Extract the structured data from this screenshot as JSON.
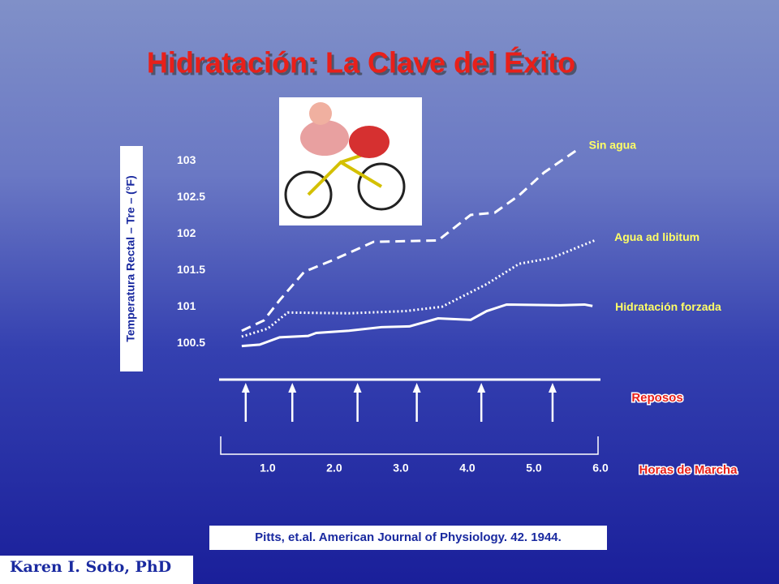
{
  "title": "Hidratación: La Clave del Éxito",
  "citation": "Pitts, et.al. American Journal of Physiology. 42. 1944.",
  "author": "Karen I. Soto, PhD",
  "chart_data": {
    "type": "line",
    "ylabel": "Temperatura Rectal – Tre – (°F)",
    "xlabel": "Horas de Marcha",
    "xlim": [
      0.27,
      6.0
    ],
    "ylim": [
      100,
      103.25
    ],
    "xticks": [
      {
        "value": 1,
        "label": "1.0"
      },
      {
        "value": 2,
        "label": "2.0"
      },
      {
        "value": 3,
        "label": "3.0"
      },
      {
        "value": 4,
        "label": "4.0"
      },
      {
        "value": 5,
        "label": "5.0"
      },
      {
        "value": 6,
        "label": "6.0"
      }
    ],
    "yticks": [
      100.5,
      101,
      101.5,
      102,
      102.5,
      103
    ],
    "rest_label": "Reposos",
    "rest_x": [
      0.67,
      1.37,
      2.35,
      3.24,
      4.21,
      5.28
    ],
    "series": [
      {
        "name": "Sin agua",
        "color": "#ffffff",
        "dash": "dashed",
        "x": [
          0.61,
          0.94,
          1.18,
          1.55,
          1.98,
          2.59,
          3.56,
          4.05,
          4.41,
          4.78,
          5.15,
          5.63
        ],
        "values": [
          100.67,
          100.81,
          101.09,
          101.48,
          101.64,
          101.89,
          101.91,
          102.26,
          102.29,
          102.53,
          102.84,
          103.14
        ]
      },
      {
        "name": "Agua ad libitum",
        "color": "#ffffff",
        "dash": "dotted",
        "x": [
          0.61,
          1.0,
          1.3,
          2.22,
          3.07,
          3.62,
          4.29,
          4.78,
          5.27,
          5.94
        ],
        "values": [
          100.59,
          100.7,
          100.92,
          100.91,
          100.94,
          101.0,
          101.31,
          101.59,
          101.67,
          101.92
        ]
      },
      {
        "name": "Hidratación forzada",
        "color": "#ffffff",
        "dash": "solid",
        "x": [
          0.61,
          0.88,
          1.18,
          1.61,
          1.73,
          2.22,
          2.71,
          3.13,
          3.56,
          4.05,
          4.29,
          4.59,
          5.39,
          5.76,
          5.88
        ],
        "values": [
          100.46,
          100.48,
          100.58,
          100.6,
          100.64,
          100.67,
          100.72,
          100.73,
          100.84,
          100.82,
          100.94,
          101.03,
          101.02,
          101.03,
          101.01
        ]
      }
    ]
  }
}
